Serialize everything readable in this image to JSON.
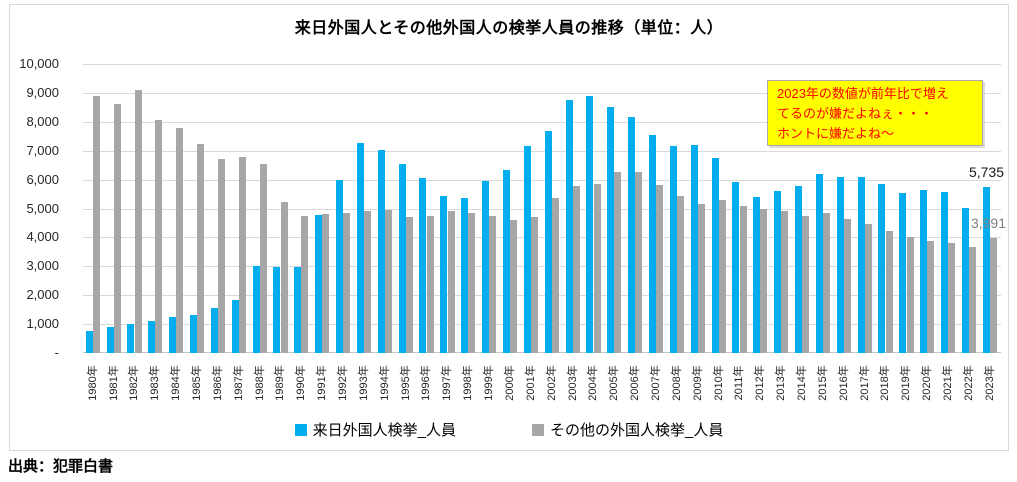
{
  "chart_data": {
    "type": "bar",
    "title": "来日外国人とその他外国人の検挙人員の推移（単位：人）",
    "categories": [
      "1980年",
      "1981年",
      "1982年",
      "1983年",
      "1984年",
      "1985年",
      "1986年",
      "1987年",
      "1988年",
      "1989年",
      "1990年",
      "1991年",
      "1992年",
      "1993年",
      "1994年",
      "1995年",
      "1996年",
      "1997年",
      "1998年",
      "1999年",
      "2000年",
      "2001年",
      "2002年",
      "2003年",
      "2004年",
      "2005年",
      "2006年",
      "2007年",
      "2008年",
      "2009年",
      "2010年",
      "2011年",
      "2012年",
      "2013年",
      "2014年",
      "2015年",
      "2016年",
      "2017年",
      "2018年",
      "2019年",
      "2020年",
      "2021年",
      "2022年",
      "2023年"
    ],
    "series": [
      {
        "name": "来日外国人検挙_人員",
        "color": "#00AEEF",
        "values": [
          750,
          910,
          990,
          1120,
          1250,
          1330,
          1570,
          1830,
          3000,
          2980,
          2960,
          4790,
          5990,
          7280,
          7010,
          6550,
          6050,
          5440,
          5360,
          5960,
          6330,
          7160,
          7680,
          8750,
          8900,
          8510,
          8160,
          7540,
          7160,
          7200,
          6740,
          5900,
          5410,
          5610,
          5780,
          6180,
          6100,
          6090,
          5860,
          5550,
          5630,
          5570,
          5010,
          5735
        ]
      },
      {
        "name": "その他の外国人検挙_人員",
        "color": "#A6A6A6",
        "values": [
          8880,
          8600,
          9110,
          8060,
          7770,
          7230,
          6720,
          6790,
          6550,
          5210,
          4750,
          4820,
          4830,
          4910,
          4940,
          4700,
          4740,
          4920,
          4850,
          4730,
          4600,
          4710,
          5380,
          5770,
          5860,
          6280,
          6260,
          5800,
          5440,
          5160,
          5310,
          5090,
          4970,
          4920,
          4740,
          4850,
          4640,
          4460,
          4210,
          4010,
          3860,
          3820,
          3670,
          3991
        ]
      }
    ],
    "ylim": [
      0,
      10000
    ],
    "ytick_labels": [
      "-",
      "1,000",
      "2,000",
      "3,000",
      "4,000",
      "5,000",
      "6,000",
      "7,000",
      "8,000",
      "9,000",
      "10,000"
    ],
    "grid": true,
    "legend_position": "bottom"
  },
  "annotation": {
    "lines": [
      "2023年の数値が前年比で増え",
      "てるのが嫌だよねぇ・・・",
      "ホントに嫌だよね～"
    ],
    "bg_color": "#FFFF00",
    "text_color": "#FF0000"
  },
  "data_labels": {
    "visiting_2023": "5,735",
    "other_2023": "3,991"
  },
  "source": "出典：犯罪白書"
}
